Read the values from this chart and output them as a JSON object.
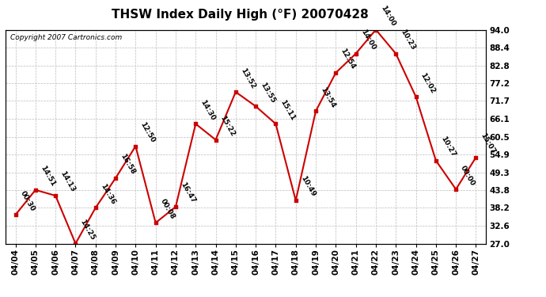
{
  "title": "THSW Index Daily High (°F) 20070428",
  "copyright": "Copyright 2007 Cartronics.com",
  "x_labels": [
    "04/04",
    "04/05",
    "04/06",
    "04/07",
    "04/08",
    "04/09",
    "04/10",
    "04/11",
    "04/12",
    "04/13",
    "04/14",
    "04/15",
    "04/16",
    "04/17",
    "04/18",
    "04/19",
    "04/20",
    "04/21",
    "04/22",
    "04/23",
    "04/24",
    "04/25",
    "04/26",
    "04/27"
  ],
  "y_values": [
    36.0,
    43.8,
    42.0,
    27.0,
    38.2,
    47.5,
    57.5,
    33.5,
    38.5,
    64.5,
    59.5,
    74.5,
    70.0,
    64.5,
    40.5,
    68.5,
    80.5,
    86.5,
    94.0,
    86.5,
    73.0,
    53.0,
    44.0,
    54.0
  ],
  "time_labels": [
    "00:30",
    "14:51",
    "14:13",
    "14:25",
    "14:36",
    "16:58",
    "12:50",
    "00:08",
    "16:47",
    "14:30",
    "15:22",
    "13:52",
    "13:55",
    "15:11",
    "10:49",
    "13:54",
    "12:54",
    "14:00",
    "14:00",
    "10:23",
    "12:02",
    "10:27",
    "00:00",
    "15:07"
  ],
  "y_ticks": [
    27.0,
    32.6,
    38.2,
    43.8,
    49.3,
    54.9,
    60.5,
    66.1,
    71.7,
    77.2,
    82.8,
    88.4,
    94.0
  ],
  "line_color": "#cc0000",
  "marker_color": "#cc0000",
  "bg_color": "#ffffff",
  "grid_color": "#bbbbbb",
  "title_fontsize": 11,
  "label_fontsize": 6.5,
  "tick_fontsize": 7.5,
  "copyright_fontsize": 6.5
}
